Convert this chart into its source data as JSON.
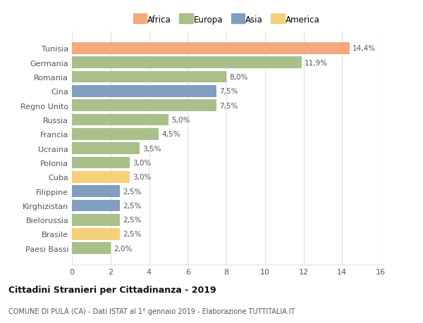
{
  "countries": [
    "Tunisia",
    "Germania",
    "Romania",
    "Cina",
    "Regno Unito",
    "Russia",
    "Francia",
    "Ucraina",
    "Polonia",
    "Cuba",
    "Filippine",
    "Kirghizistan",
    "Bielorussia",
    "Brasile",
    "Paesi Bassi"
  ],
  "values": [
    14.4,
    11.9,
    8.0,
    7.5,
    7.5,
    5.0,
    4.5,
    3.5,
    3.0,
    3.0,
    2.5,
    2.5,
    2.5,
    2.5,
    2.0
  ],
  "labels": [
    "14,4%",
    "11,9%",
    "8,0%",
    "7,5%",
    "7,5%",
    "5,0%",
    "4,5%",
    "3,5%",
    "3,0%",
    "3,0%",
    "2,5%",
    "2,5%",
    "2,5%",
    "2,5%",
    "2,0%"
  ],
  "continents": [
    "Africa",
    "Europa",
    "Europa",
    "Asia",
    "Europa",
    "Europa",
    "Europa",
    "Europa",
    "Europa",
    "America",
    "Asia",
    "Asia",
    "Europa",
    "America",
    "Europa"
  ],
  "continent_colors": {
    "Africa": "#F4A97F",
    "Europa": "#AABF8A",
    "Asia": "#7F9EC0",
    "America": "#F5D07A"
  },
  "legend_order": [
    "Africa",
    "Europa",
    "Asia",
    "America"
  ],
  "title": "Cittadini Stranieri per Cittadinanza - 2019",
  "subtitle": "COMUNE DI PULA (CA) - Dati ISTAT al 1° gennaio 2019 - Elaborazione TUTTITALIA.IT",
  "xlim": [
    0,
    16
  ],
  "xticks": [
    0,
    2,
    4,
    6,
    8,
    10,
    12,
    14,
    16
  ],
  "background_color": "#ffffff",
  "grid_color": "#e0e0e0",
  "bar_height": 0.82
}
